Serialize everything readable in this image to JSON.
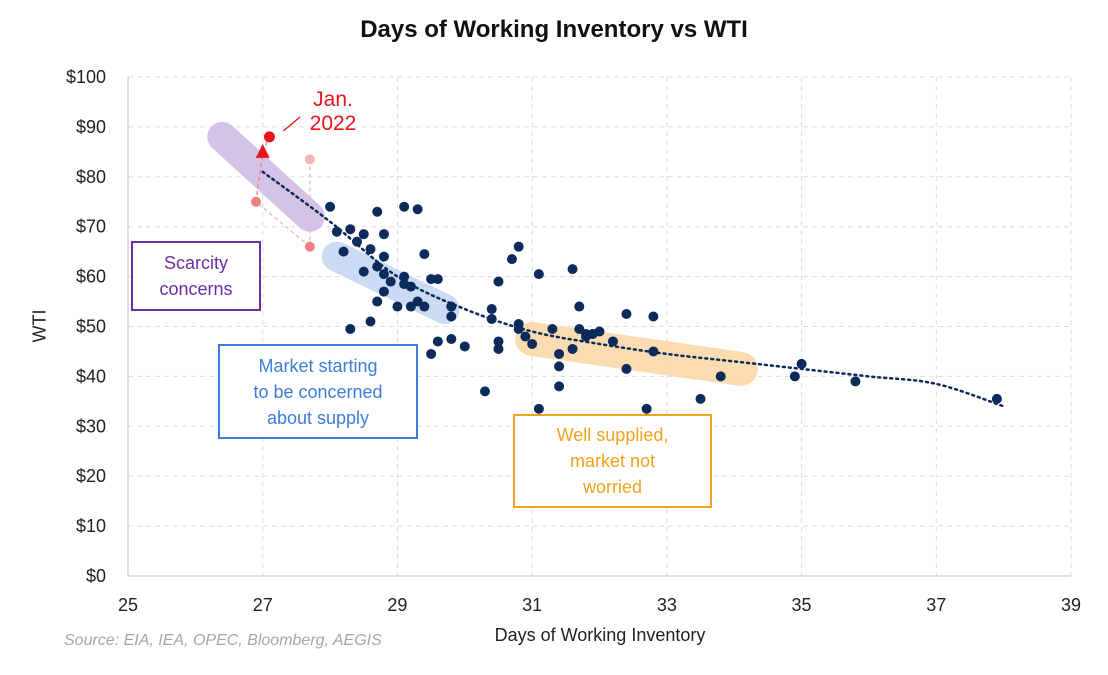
{
  "chart_data": {
    "type": "scatter",
    "title": "Days of Working Inventory vs WTI",
    "xlabel": "Days of Working Inventory",
    "ylabel": "WTI",
    "xlim": [
      25,
      39
    ],
    "ylim": [
      0,
      100
    ],
    "x_ticks": [
      "25",
      "27",
      "29",
      "31",
      "33",
      "35",
      "37",
      "39"
    ],
    "y_ticks": [
      "$0",
      "$10",
      "$20",
      "$30",
      "$40",
      "$50",
      "$60",
      "$70",
      "$80",
      "$90",
      "$100"
    ],
    "grid": true,
    "source": "Source: EIA, IEA, OPEC, Bloomberg, AEGIS",
    "colors": {
      "points": "#0d2b5a",
      "trend": "#0d2b5a",
      "highlight": "#e8141b",
      "highlight_light": "#f08080",
      "highlight_faint": "#f6b5b5",
      "scarcity": "#6a2ea0",
      "scarcity_band": "#cdb8e3",
      "market": "#3b7dd8",
      "market_band": "#c2d5f4",
      "well": "#f3a11e",
      "well_band": "#fbd7a3"
    },
    "points": [
      [
        28.0,
        74
      ],
      [
        28.1,
        69
      ],
      [
        28.3,
        69.5
      ],
      [
        28.2,
        65
      ],
      [
        28.4,
        67
      ],
      [
        28.5,
        68.5
      ],
      [
        28.6,
        65.5
      ],
      [
        28.7,
        73
      ],
      [
        28.8,
        68.5
      ],
      [
        28.5,
        61
      ],
      [
        28.7,
        62
      ],
      [
        28.8,
        64
      ],
      [
        28.8,
        60.5
      ],
      [
        28.8,
        57
      ],
      [
        29.1,
        74
      ],
      [
        29.3,
        73.5
      ],
      [
        28.9,
        59
      ],
      [
        29.0,
        54
      ],
      [
        29.1,
        58.5
      ],
      [
        29.1,
        60
      ],
      [
        29.2,
        58
      ],
      [
        29.3,
        55
      ],
      [
        29.4,
        64.5
      ],
      [
        29.4,
        54
      ],
      [
        29.5,
        59.5
      ],
      [
        29.6,
        59.5
      ],
      [
        29.2,
        54
      ],
      [
        28.7,
        55
      ],
      [
        28.3,
        49.5
      ],
      [
        28.6,
        51
      ],
      [
        28.8,
        45.5
      ],
      [
        29.5,
        44.5
      ],
      [
        29.6,
        47
      ],
      [
        29.8,
        47.5
      ],
      [
        29.8,
        52
      ],
      [
        29.8,
        54
      ],
      [
        30.0,
        46
      ],
      [
        30.3,
        37
      ],
      [
        30.4,
        51.5
      ],
      [
        30.4,
        53.5
      ],
      [
        30.5,
        45.5
      ],
      [
        30.5,
        47
      ],
      [
        30.5,
        59
      ],
      [
        30.7,
        63.5
      ],
      [
        30.8,
        66
      ],
      [
        30.8,
        49.5
      ],
      [
        30.8,
        50.5
      ],
      [
        30.9,
        48
      ],
      [
        31.0,
        46.5
      ],
      [
        31.1,
        60.5
      ],
      [
        31.1,
        33.5
      ],
      [
        31.3,
        49.5
      ],
      [
        31.4,
        44.5
      ],
      [
        31.4,
        38
      ],
      [
        31.4,
        42
      ],
      [
        31.6,
        45.5
      ],
      [
        31.6,
        61.5
      ],
      [
        31.7,
        54
      ],
      [
        31.7,
        49.5
      ],
      [
        31.8,
        48.5
      ],
      [
        31.9,
        48.5
      ],
      [
        31.8,
        48
      ],
      [
        31.9,
        48.5
      ],
      [
        32.0,
        49
      ],
      [
        32.2,
        47
      ],
      [
        32.4,
        52.5
      ],
      [
        32.4,
        41.5
      ],
      [
        32.7,
        33.5
      ],
      [
        32.8,
        45
      ],
      [
        32.8,
        52
      ],
      [
        33.5,
        35.5
      ],
      [
        33.8,
        40
      ],
      [
        34.9,
        40
      ],
      [
        35.0,
        42.5
      ],
      [
        35.8,
        39
      ],
      [
        37.9,
        35.5
      ]
    ],
    "highlight_path": [
      [
        27.7,
        83.5
      ],
      [
        27.7,
        66
      ],
      [
        26.9,
        75
      ],
      [
        27.0,
        85
      ],
      [
        27.1,
        88
      ]
    ],
    "trend_curve": [
      [
        27.0,
        81
      ],
      [
        28,
        71
      ],
      [
        29,
        60
      ],
      [
        30,
        53.5
      ],
      [
        31,
        49
      ],
      [
        32,
        46.5
      ],
      [
        33,
        44.5
      ],
      [
        34,
        43
      ],
      [
        35,
        41.5
      ],
      [
        36,
        40
      ],
      [
        37,
        38.5
      ],
      [
        38,
        34
      ]
    ],
    "bands": [
      {
        "name": "scarcity",
        "from": [
          26.4,
          88
        ],
        "to": [
          27.7,
          72
        ]
      },
      {
        "name": "market",
        "from": [
          28.1,
          64
        ],
        "to": [
          29.7,
          53.5
        ]
      },
      {
        "name": "well",
        "from": [
          31.0,
          47.5
        ],
        "to": [
          34.1,
          41.5
        ]
      }
    ],
    "annotations": {
      "jan_line1": "Jan.",
      "jan_line2": "2022",
      "scarcity_line1": "Scarcity",
      "scarcity_line2": "concerns",
      "market_line1": "Market starting",
      "market_line2": "to be concerned",
      "market_line3": "about supply",
      "well_line1": "Well supplied,",
      "well_line2": "market not",
      "well_line3": "worried"
    }
  }
}
